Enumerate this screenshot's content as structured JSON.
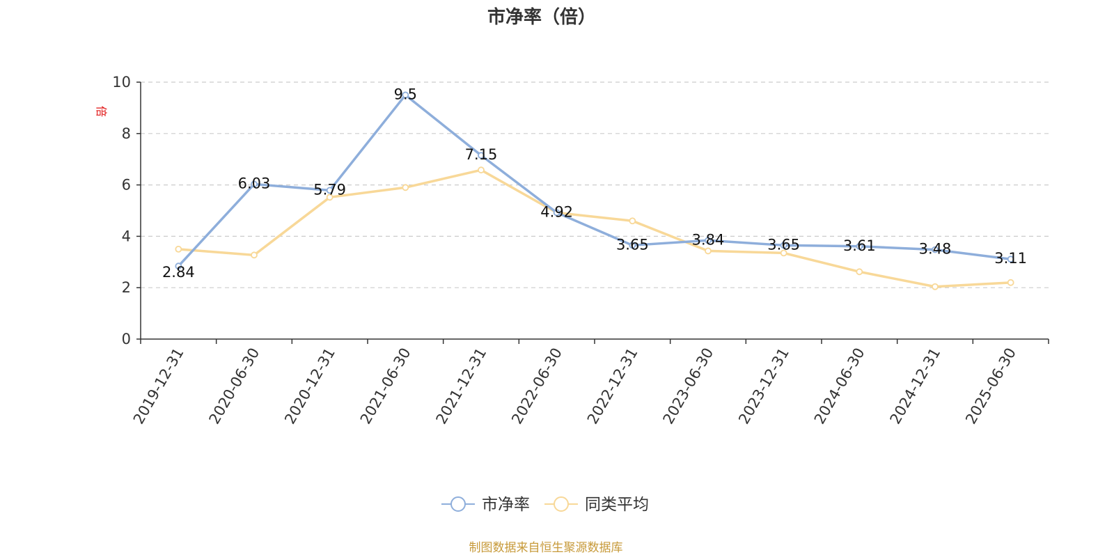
{
  "chart_data": {
    "type": "line",
    "title": "市净率（倍）",
    "ylabel": "倍",
    "ylim": [
      0,
      10
    ],
    "yticks": [
      0,
      2,
      4,
      6,
      8,
      10
    ],
    "grid": true,
    "legend_position": "bottom",
    "categories": [
      "2019-12-31",
      "2020-06-30",
      "2020-12-31",
      "2021-06-30",
      "2021-12-31",
      "2022-06-30",
      "2022-12-31",
      "2023-06-30",
      "2023-12-31",
      "2024-06-30",
      "2024-12-31",
      "2025-06-30"
    ],
    "series": [
      {
        "name": "市净率",
        "color": "#8eaedb",
        "values": [
          2.84,
          6.03,
          5.79,
          9.5,
          7.15,
          4.92,
          3.65,
          3.84,
          3.65,
          3.61,
          3.48,
          3.11
        ],
        "labels": [
          "2.84",
          "6.03",
          "5.79",
          "9.5",
          "7.15",
          "4.92",
          "3.65",
          "3.84",
          "3.65",
          "3.61",
          "3.48",
          "3.11"
        ]
      },
      {
        "name": "同类平均",
        "color": "#f8d898",
        "values": [
          3.5,
          3.27,
          5.52,
          5.9,
          6.58,
          4.92,
          4.6,
          3.43,
          3.35,
          2.62,
          2.04,
          2.2
        ]
      }
    ],
    "source": "制图数据来自恒生聚源数据库"
  }
}
